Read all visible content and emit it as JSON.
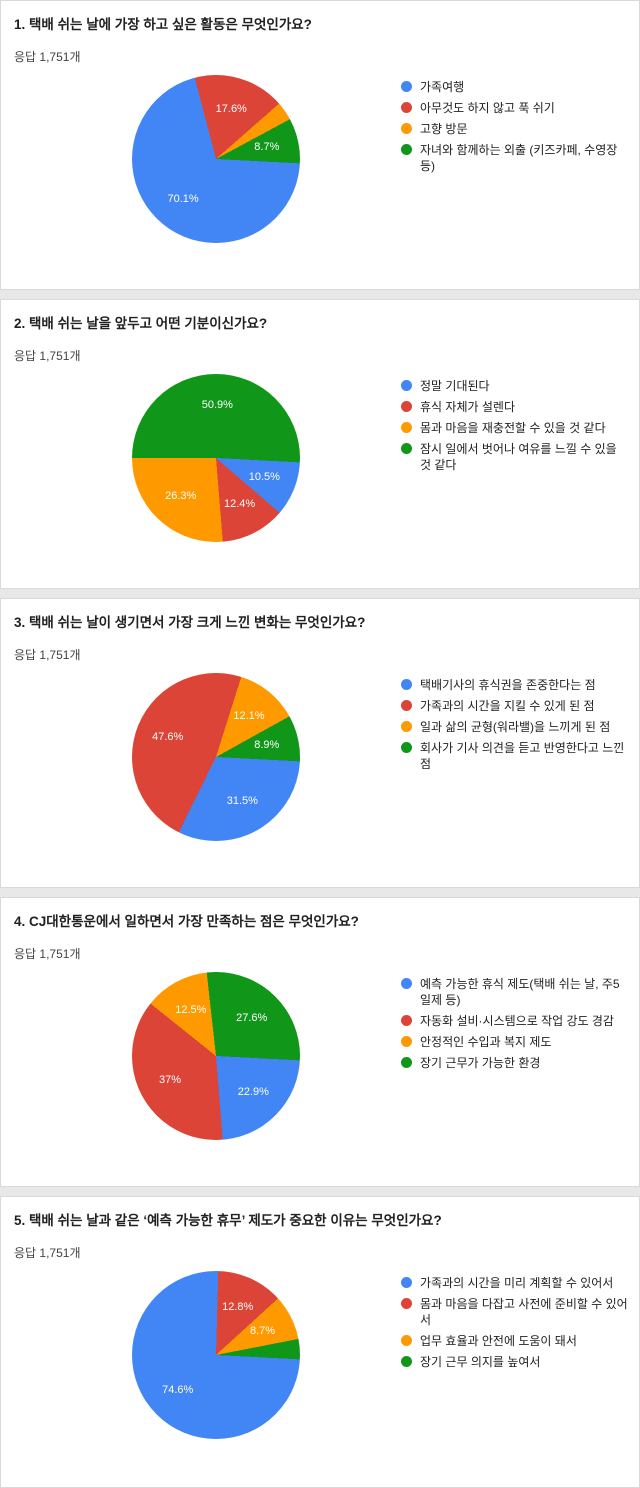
{
  "page": {
    "background": "#e8e8e8",
    "card_background": "#ffffff",
    "card_border": "#d9d9d9"
  },
  "chart_colors": [
    "#4285F4",
    "#DB4437",
    "#FF9900",
    "#109618"
  ],
  "chart_data": [
    {
      "type": "pie",
      "title": "1. 택배 쉬는 날에 가장 하고 싶은 활동은 무엇인가요?",
      "subtitle": "응답 1,751개",
      "legend_position": "right",
      "labels": [
        "가족여행",
        "아무것도 하지 않고 푹 쉬기",
        "고향 방문",
        "자녀와 함께하는 외출 (키즈카페, 수영장 등)"
      ],
      "values": [
        70.1,
        17.6,
        3.6,
        8.7
      ],
      "percent_labels": [
        "70.1%",
        "17.6%",
        "",
        "8.7%"
      ]
    },
    {
      "type": "pie",
      "title": "2. 택배 쉬는 날을 앞두고 어떤 기분이신가요?",
      "subtitle": "응답 1,751개",
      "legend_position": "right",
      "labels": [
        "정말 기대된다",
        "휴식 자체가 설렌다",
        "몸과 마음을 재충전할 수 있을 것 같다",
        "잠시 일에서 벗어나 여유를 느낄 수 있을 것 같다"
      ],
      "values": [
        10.5,
        12.4,
        26.3,
        50.9
      ],
      "percent_labels": [
        "10.5%",
        "12.4%",
        "26.3%",
        "50.9%"
      ]
    },
    {
      "type": "pie",
      "title": "3. 택배 쉬는 날이 생기면서 가장 크게 느낀 변화는 무엇인가요?",
      "subtitle": "응답 1,751개",
      "legend_position": "right",
      "labels": [
        "택배기사의 휴식권을 존중한다는 점",
        "가족과의 시간을 지킬 수 있게 된 점",
        "일과 삶의 균형(워라밸)을 느끼게 된 점",
        "회사가 기사 의견을 듣고 반영한다고 느낀 점"
      ],
      "values": [
        31.5,
        47.6,
        12.1,
        8.9
      ],
      "percent_labels": [
        "31.5%",
        "47.6%",
        "12.1%",
        "8.9%"
      ]
    },
    {
      "type": "pie",
      "title": "4. CJ대한통운에서 일하면서 가장 만족하는 점은 무엇인가요?",
      "subtitle": "응답 1,751개",
      "legend_position": "right",
      "labels": [
        "예측 가능한 휴식 제도(택배 쉬는 날, 주5일제 등)",
        "자동화 설비·시스템으로 작업 강도 경감",
        "안정적인 수입과 복지 제도",
        "장기 근무가 가능한 환경"
      ],
      "values": [
        22.9,
        37,
        12.5,
        27.6
      ],
      "percent_labels": [
        "22.9%",
        "37%",
        "12.5%",
        "27.6%"
      ]
    },
    {
      "type": "pie",
      "title": "5. 택배 쉬는 날과 같은 ‘예측 가능한 휴무’ 제도가 중요한 이유는 무엇인가요?",
      "subtitle": "응답 1,751개",
      "legend_position": "right",
      "labels": [
        "가족과의 시간을 미리 계획할 수 있어서",
        "몸과 마음을 다잡고 사전에 준비할 수 있어서",
        "업무 효율과 안전에 도움이 돼서",
        "장기 근무 의지를 높여서"
      ],
      "values": [
        74.6,
        12.8,
        8.7,
        3.9
      ],
      "percent_labels": [
        "74.6%",
        "12.8%",
        "8.7%",
        ""
      ]
    }
  ]
}
